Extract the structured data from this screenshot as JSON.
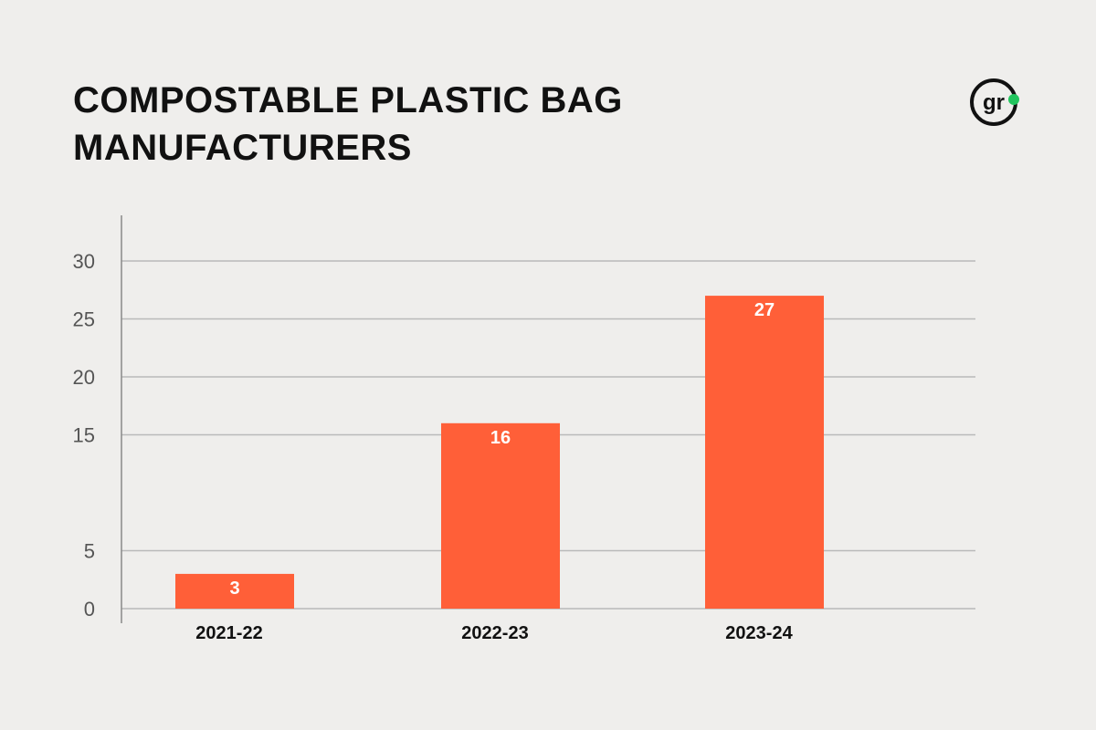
{
  "title_lines": [
    "COMPOSTABLE PLASTIC BAG",
    "MANUFACTURERS"
  ],
  "logo": {
    "text": "gr",
    "icon": "gr-logo-icon",
    "dot_color": "#22c55e"
  },
  "colors": {
    "bar": "#ff5f38",
    "grid": "#b9b9b9",
    "axis": "#888888",
    "background": "#efeeec"
  },
  "chart_data": {
    "type": "bar",
    "title": "COMPOSTABLE PLASTIC BAG MANUFACTURERS",
    "categories": [
      "2021-22",
      "2022-23",
      "2023-24"
    ],
    "values": [
      3,
      16,
      27
    ],
    "data_labels": [
      "3",
      "16",
      "27"
    ],
    "yticks": [
      {
        "value": 0,
        "label": "0"
      },
      {
        "value": 5,
        "label": "5"
      },
      {
        "value": 15,
        "label": "15"
      },
      {
        "value": 20,
        "label": "20"
      },
      {
        "value": 25,
        "label": "25"
      },
      {
        "value": 30,
        "label": "30"
      }
    ],
    "ylim": [
      0,
      33
    ],
    "grid": true,
    "legend": "none"
  }
}
